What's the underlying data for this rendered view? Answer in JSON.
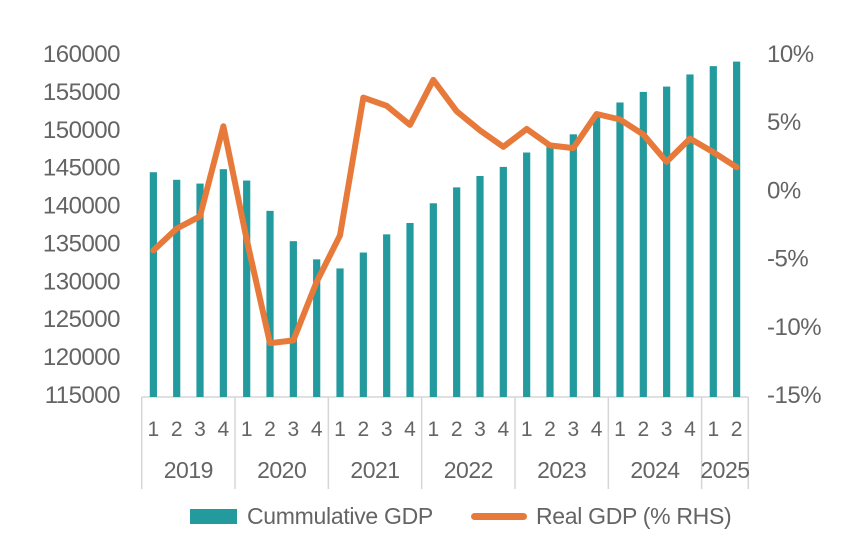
{
  "chart_data": {
    "type": "combo",
    "title": "",
    "grid": false,
    "legend_position": "bottom",
    "quarter_labels": [
      "1",
      "2",
      "3",
      "4",
      "1",
      "2",
      "3",
      "4",
      "1",
      "2",
      "3",
      "4",
      "1",
      "2",
      "3",
      "4",
      "1",
      "2",
      "3",
      "4",
      "1",
      "2",
      "3",
      "4",
      "1",
      "2"
    ],
    "year_groups": [
      {
        "year": "2019",
        "quarters": 4
      },
      {
        "year": "2020",
        "quarters": 4
      },
      {
        "year": "2021",
        "quarters": 4
      },
      {
        "year": "2022",
        "quarters": 4
      },
      {
        "year": "2023",
        "quarters": 4
      },
      {
        "year": "2024",
        "quarters": 4
      },
      {
        "year": "2025",
        "quarters": 2
      }
    ],
    "series": [
      {
        "name": "Cummulative GDP",
        "type": "bar",
        "axis": "left",
        "color": "#239A9D",
        "values": [
          144400,
          143400,
          142900,
          144800,
          143300,
          139300,
          135300,
          132900,
          131700,
          133800,
          136200,
          137700,
          140300,
          142400,
          143900,
          145100,
          147000,
          148000,
          149400,
          151700,
          153600,
          155000,
          155700,
          157300,
          158400,
          159000
        ]
      },
      {
        "name": "Real GDP (% RHS)",
        "type": "line",
        "axis": "right",
        "color": "#E77A3A",
        "values": [
          -4.4,
          -2.8,
          -1.9,
          4.7,
          -3.6,
          -11.2,
          -11.0,
          -6.7,
          -3.3,
          6.8,
          6.2,
          4.8,
          8.1,
          5.8,
          4.4,
          3.2,
          4.5,
          3.3,
          3.1,
          5.6,
          5.2,
          4.1,
          2.1,
          3.8,
          2.8,
          1.7
        ]
      }
    ],
    "left_axis": {
      "min": 115000,
      "max": 160000,
      "step": 5000,
      "tick_labels": [
        "160000",
        "155000",
        "150000",
        "145000",
        "140000",
        "135000",
        "130000",
        "125000",
        "120000",
        "115000"
      ]
    },
    "right_axis": {
      "min": -15,
      "max": 10,
      "step": 5,
      "tick_labels": [
        "10%",
        "5%",
        "0%",
        "-5%",
        "-10%",
        "-15%"
      ]
    },
    "colors": {
      "text_gray": "#646464",
      "axis_band_gray": "#D6D6D6",
      "background": "#FFFFFF"
    }
  }
}
